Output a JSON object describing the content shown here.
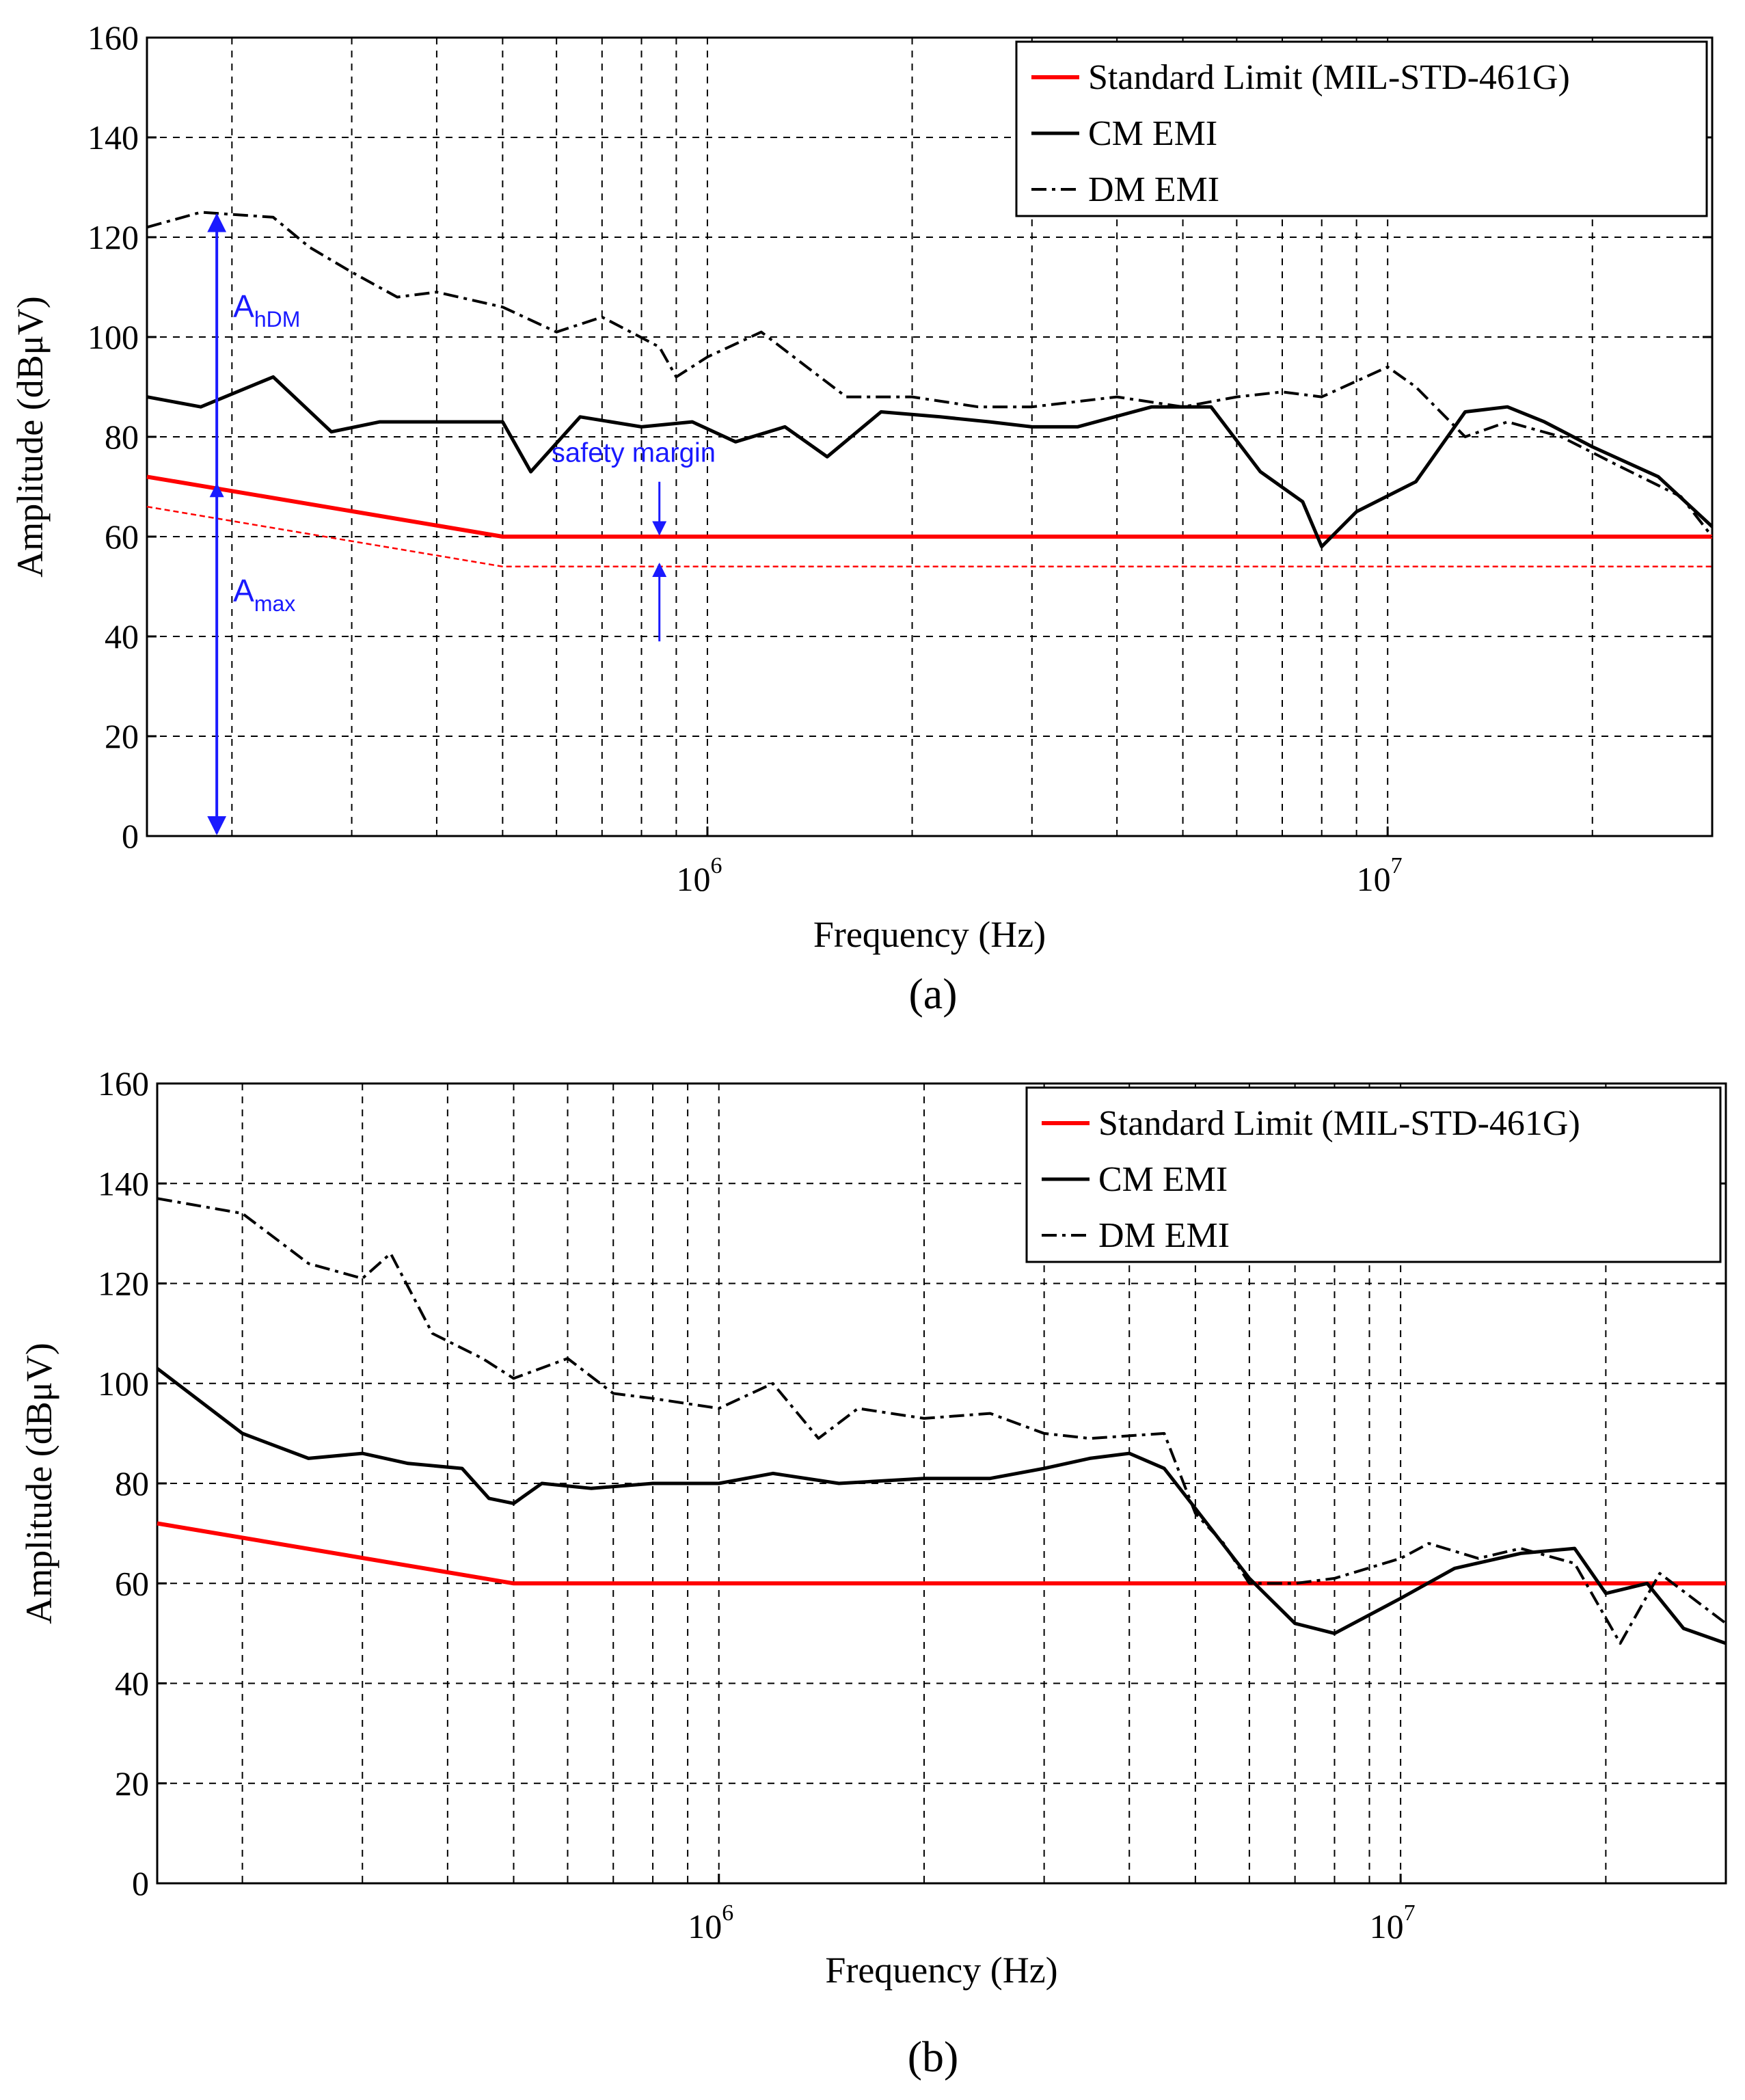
{
  "chart_data": [
    {
      "id": "a",
      "type": "line",
      "caption": "(a)",
      "xlabel": "Frequency (Hz)",
      "ylabel": "Amplitude (dBμV)",
      "xscale": "log",
      "xlim": [
        150000,
        30000000
      ],
      "ylim": [
        0,
        160
      ],
      "y_ticks": [
        "0",
        "20",
        "40",
        "60",
        "80",
        "100",
        "120",
        "140",
        "160"
      ],
      "x_tick_labels": [
        {
          "base": "10",
          "exp": "6",
          "value": 1000000
        },
        {
          "base": "10",
          "exp": "7",
          "value": 10000000
        }
      ],
      "grid": true,
      "legend_position": "top-right",
      "legend": [
        "Standard Limit (MIL-STD-461G)",
        "CM EMI",
        "DM EMI"
      ],
      "series": [
        {
          "name": "Standard Limit (MIL-STD-461G)",
          "color": "#ff0000",
          "style": "solid",
          "x": [
            150000,
            500000,
            30000000
          ],
          "y": [
            72,
            60,
            60
          ]
        },
        {
          "name": "Safety margin line",
          "color": "#ff0000",
          "style": "dashed-thin",
          "x": [
            150000,
            500000,
            30000000
          ],
          "y": [
            66,
            54,
            54
          ]
        },
        {
          "name": "CM EMI",
          "color": "#000000",
          "style": "solid",
          "x": [
            150000,
            180000,
            230000,
            280000,
            330000,
            400000,
            500000,
            550000,
            650000,
            800000,
            950000,
            1100000,
            1300000,
            1500000,
            1800000,
            2200000,
            2600000,
            3000000,
            3500000,
            4500000,
            5500000,
            6500000,
            7500000,
            8000000,
            9000000,
            11000000,
            13000000,
            15000000,
            17000000,
            20000000,
            25000000,
            30000000
          ],
          "y": [
            88,
            86,
            92,
            81,
            83,
            83,
            83,
            73,
            84,
            82,
            83,
            79,
            82,
            76,
            85,
            84,
            83,
            82,
            82,
            86,
            86,
            73,
            67,
            58,
            65,
            71,
            85,
            86,
            83,
            78,
            72,
            62
          ]
        },
        {
          "name": "DM EMI",
          "color": "#000000",
          "style": "dashdot",
          "x": [
            150000,
            180000,
            230000,
            260000,
            300000,
            350000,
            400000,
            500000,
            600000,
            700000,
            850000,
            900000,
            1000000,
            1200000,
            1400000,
            1600000,
            2000000,
            2500000,
            3000000,
            4000000,
            5000000,
            6000000,
            7000000,
            8000000,
            10000000,
            11000000,
            13000000,
            15000000,
            18000000,
            22000000,
            27000000,
            30000000
          ],
          "y": [
            122,
            125,
            124,
            118,
            113,
            108,
            109,
            106,
            101,
            104,
            98,
            92,
            96,
            101,
            94,
            88,
            88,
            86,
            86,
            88,
            86,
            88,
            89,
            88,
            94,
            90,
            80,
            83,
            80,
            74,
            68,
            60
          ]
        }
      ],
      "annotations": {
        "a_hdm_base": "A",
        "a_hdm_sub": "hDM",
        "a_max_base": "A",
        "a_max_sub": "max",
        "safety_margin": "safety margin"
      }
    },
    {
      "id": "b",
      "type": "line",
      "caption": "(b)",
      "xlabel": "Frequency (Hz)",
      "ylabel": "Amplitude (dBμV)",
      "xscale": "log",
      "xlim": [
        150000,
        30000000
      ],
      "ylim": [
        0,
        160
      ],
      "y_ticks": [
        "0",
        "20",
        "40",
        "60",
        "80",
        "100",
        "120",
        "140",
        "160"
      ],
      "x_tick_labels": [
        {
          "base": "10",
          "exp": "6",
          "value": 1000000
        },
        {
          "base": "10",
          "exp": "7",
          "value": 10000000
        }
      ],
      "grid": true,
      "legend_position": "top-right",
      "legend": [
        "Standard Limit (MIL-STD-461G)",
        "CM EMI",
        "DM EMI"
      ],
      "series": [
        {
          "name": "Standard Limit (MIL-STD-461G)",
          "color": "#ff0000",
          "style": "solid",
          "x": [
            150000,
            500000,
            30000000
          ],
          "y": [
            72,
            60,
            60
          ]
        },
        {
          "name": "CM EMI",
          "color": "#000000",
          "style": "solid",
          "x": [
            150000,
            200000,
            250000,
            300000,
            350000,
            420000,
            460000,
            500000,
            550000,
            650000,
            800000,
            1000000,
            1200000,
            1500000,
            2000000,
            2500000,
            3000000,
            3500000,
            4000000,
            4500000,
            5000000,
            6000000,
            7000000,
            8000000,
            10000000,
            12000000,
            15000000,
            18000000,
            20000000,
            23000000,
            26000000,
            30000000
          ],
          "y": [
            103,
            90,
            85,
            86,
            84,
            83,
            77,
            76,
            80,
            79,
            80,
            80,
            82,
            80,
            81,
            81,
            83,
            85,
            86,
            83,
            75,
            61,
            52,
            50,
            57,
            63,
            66,
            67,
            58,
            60,
            51,
            48
          ]
        },
        {
          "name": "DM EMI",
          "color": "#000000",
          "style": "dashdot",
          "x": [
            150000,
            200000,
            250000,
            300000,
            330000,
            380000,
            450000,
            500000,
            600000,
            700000,
            800000,
            1000000,
            1200000,
            1400000,
            1600000,
            2000000,
            2500000,
            3000000,
            3500000,
            4500000,
            5000000,
            5500000,
            6000000,
            7000000,
            8000000,
            10000000,
            11000000,
            13000000,
            15000000,
            18000000,
            21000000,
            24000000,
            30000000
          ],
          "y": [
            137,
            134,
            124,
            121,
            126,
            110,
            105,
            101,
            105,
            98,
            97,
            95,
            100,
            89,
            95,
            93,
            94,
            90,
            89,
            90,
            74,
            68,
            60,
            60,
            61,
            65,
            68,
            65,
            67,
            64,
            48,
            62,
            52
          ]
        }
      ]
    }
  ]
}
